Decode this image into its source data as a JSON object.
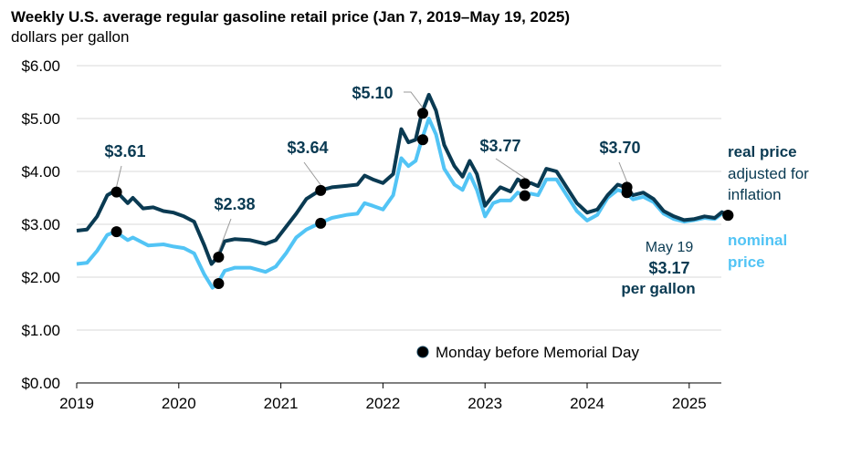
{
  "chart_data": {
    "type": "line",
    "title": "Weekly U.S. average regular gasoline retail price (Jan 7, 2019–May 19, 2025)",
    "subtitle": "dollars per gallon",
    "xlim": [
      2019,
      2025.45
    ],
    "ylim": [
      0,
      6
    ],
    "x_ticks": [
      "2019",
      "2020",
      "2021",
      "2022",
      "2023",
      "2024",
      "2025"
    ],
    "y_ticks": [
      "$0.00",
      "$1.00",
      "$2.00",
      "$3.00",
      "$4.00",
      "$5.00",
      "$6.00"
    ],
    "grid": "horizontal",
    "colors": {
      "real": "#0a3a52",
      "nominal": "#52c4f5",
      "marker": "#000000",
      "label": "#0a3a52",
      "grid": "#d9d9d9"
    },
    "series": [
      {
        "name": "real price adjusted for inflation",
        "name_line1": "real price",
        "name_line2": "adjusted for",
        "name_line3": "inflation",
        "x": [
          2019.0,
          2019.1,
          2019.2,
          2019.3,
          2019.38,
          2019.45,
          2019.5,
          2019.55,
          2019.65,
          2019.75,
          2019.85,
          2019.95,
          2020.05,
          2020.15,
          2020.25,
          2020.32,
          2020.38,
          2020.45,
          2020.55,
          2020.7,
          2020.85,
          2020.95,
          2021.05,
          2021.15,
          2021.25,
          2021.38,
          2021.5,
          2021.65,
          2021.75,
          2021.82,
          2021.9,
          2022.0,
          2022.1,
          2022.18,
          2022.25,
          2022.32,
          2022.38,
          2022.45,
          2022.52,
          2022.6,
          2022.7,
          2022.78,
          2022.85,
          2022.92,
          2023.0,
          2023.08,
          2023.15,
          2023.25,
          2023.32,
          2023.38,
          2023.45,
          2023.52,
          2023.6,
          2023.7,
          2023.8,
          2023.9,
          2024.0,
          2024.1,
          2024.2,
          2024.3,
          2024.38,
          2024.45,
          2024.55,
          2024.65,
          2024.75,
          2024.85,
          2024.95,
          2025.05,
          2025.15,
          2025.25,
          2025.32,
          2025.38
        ],
        "values": [
          2.88,
          2.9,
          3.15,
          3.55,
          3.64,
          3.5,
          3.4,
          3.5,
          3.3,
          3.32,
          3.25,
          3.22,
          3.15,
          3.05,
          2.6,
          2.25,
          2.38,
          2.68,
          2.72,
          2.7,
          2.63,
          2.7,
          2.95,
          3.2,
          3.48,
          3.64,
          3.7,
          3.73,
          3.75,
          3.92,
          3.85,
          3.78,
          3.95,
          4.8,
          4.55,
          4.6,
          5.1,
          5.45,
          5.15,
          4.5,
          4.1,
          3.9,
          4.2,
          3.95,
          3.35,
          3.55,
          3.7,
          3.62,
          3.85,
          3.77,
          3.78,
          3.72,
          4.05,
          4.0,
          3.7,
          3.4,
          3.22,
          3.28,
          3.55,
          3.75,
          3.7,
          3.55,
          3.6,
          3.48,
          3.25,
          3.15,
          3.08,
          3.1,
          3.15,
          3.12,
          3.23,
          3.17
        ]
      },
      {
        "name": "nominal price",
        "name_line1": "nominal",
        "name_line2": "price",
        "x": [
          2019.0,
          2019.1,
          2019.2,
          2019.3,
          2019.38,
          2019.5,
          2019.55,
          2019.7,
          2019.85,
          2019.95,
          2020.05,
          2020.15,
          2020.25,
          2020.33,
          2020.38,
          2020.45,
          2020.55,
          2020.7,
          2020.85,
          2020.95,
          2021.05,
          2021.15,
          2021.25,
          2021.38,
          2021.5,
          2021.65,
          2021.75,
          2021.82,
          2021.9,
          2022.0,
          2022.1,
          2022.18,
          2022.25,
          2022.32,
          2022.38,
          2022.45,
          2022.52,
          2022.6,
          2022.7,
          2022.78,
          2022.85,
          2022.92,
          2023.0,
          2023.08,
          2023.15,
          2023.25,
          2023.32,
          2023.38,
          2023.45,
          2023.52,
          2023.6,
          2023.7,
          2023.8,
          2023.9,
          2024.0,
          2024.1,
          2024.2,
          2024.3,
          2024.38,
          2024.45,
          2024.55,
          2024.65,
          2024.75,
          2024.85,
          2024.95,
          2025.05,
          2025.15,
          2025.25,
          2025.32,
          2025.38
        ],
        "values": [
          2.25,
          2.27,
          2.5,
          2.8,
          2.86,
          2.7,
          2.75,
          2.6,
          2.62,
          2.58,
          2.55,
          2.45,
          2.05,
          1.8,
          1.88,
          2.12,
          2.18,
          2.18,
          2.1,
          2.2,
          2.45,
          2.75,
          2.9,
          3.02,
          3.12,
          3.18,
          3.2,
          3.4,
          3.35,
          3.28,
          3.55,
          4.25,
          4.1,
          4.2,
          4.6,
          5.0,
          4.7,
          4.05,
          3.75,
          3.65,
          3.95,
          3.65,
          3.15,
          3.4,
          3.45,
          3.45,
          3.6,
          3.54,
          3.58,
          3.55,
          3.85,
          3.85,
          3.55,
          3.25,
          3.07,
          3.18,
          3.5,
          3.65,
          3.6,
          3.47,
          3.52,
          3.42,
          3.2,
          3.1,
          3.05,
          3.08,
          3.12,
          3.1,
          3.2,
          3.17
        ]
      }
    ],
    "memorial_day": {
      "legend": "Monday before Memorial Day",
      "x": [
        2019.39,
        2020.39,
        2021.39,
        2022.39,
        2023.39,
        2024.39,
        2025.38
      ],
      "real": [
        3.61,
        2.38,
        3.64,
        5.1,
        3.77,
        3.7,
        3.17
      ],
      "nominal": [
        2.86,
        1.88,
        3.02,
        4.6,
        3.54,
        3.6,
        3.17
      ],
      "labels": [
        "$3.61",
        "$2.38",
        "$3.64",
        "$5.10",
        "$3.77",
        "$3.70"
      ]
    },
    "latest": {
      "date": "May 19",
      "value": "$3.17",
      "unit": "per gallon"
    }
  }
}
